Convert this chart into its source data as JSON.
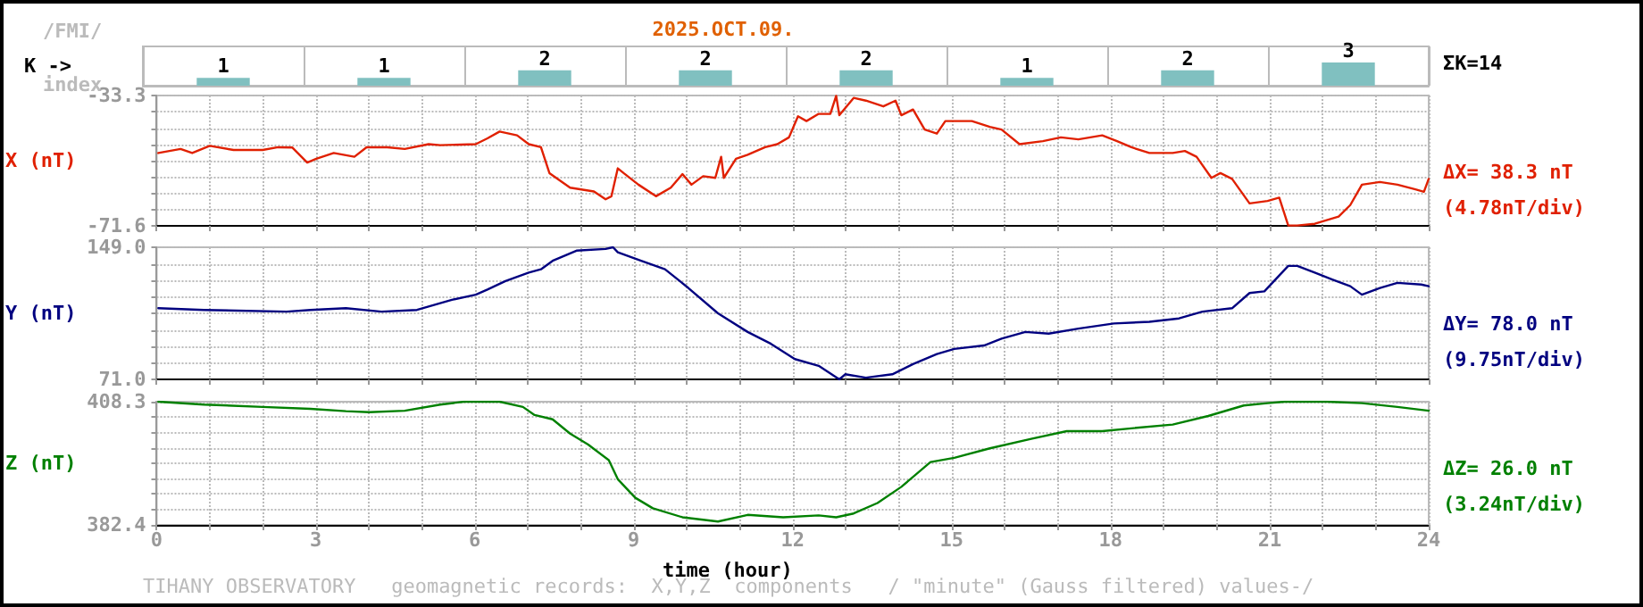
{
  "chart_data": [
    {
      "type": "bar",
      "title": "2025.OCT.09.",
      "ylabel": "K ->",
      "annotations": [
        "/FMI/",
        "index",
        "ΣK=14"
      ],
      "categories": [
        null,
        null,
        null,
        null,
        null,
        null,
        null,
        null
      ],
      "values": [
        1,
        1,
        2,
        2,
        2,
        1,
        2,
        3
      ],
      "color": "#80c0c0",
      "data_labels": true,
      "grid": "x"
    },
    {
      "type": "line",
      "ylabel": "X (nT)",
      "annotations": [
        "ΔX= 38.3 nT",
        "(4.78nT/div)"
      ],
      "series": [
        {
          "color": "#e02000",
          "x": [
            0.03,
            0.45,
            0.67,
            1.0,
            1.45,
            2.0,
            2.29,
            2.56,
            2.84,
            3.01,
            3.34,
            3.73,
            3.96,
            4.35,
            4.68,
            5.13,
            5.35,
            6.02,
            6.24,
            6.47,
            6.8,
            7.02,
            7.25,
            7.41,
            7.8,
            8.25,
            8.47,
            8.58,
            8.7,
            8.81,
            9.09,
            9.42,
            9.7,
            9.92,
            10.09,
            10.31,
            10.54,
            10.65,
            10.7,
            10.93,
            11.15,
            11.48,
            11.71,
            11.93,
            12.1,
            12.26,
            12.49,
            12.71,
            12.82,
            12.88,
            13.15,
            13.38,
            13.71,
            13.94,
            14.05,
            14.27,
            14.49,
            14.72,
            14.88,
            15.05,
            15.38,
            15.72,
            15.94,
            16.28,
            16.72,
            17.06,
            17.39,
            17.84,
            18.12,
            18.39,
            18.73,
            19.17,
            19.4,
            19.62,
            19.9,
            20.07,
            20.29,
            20.62,
            20.96,
            21.18,
            21.35,
            21.52,
            21.85,
            22.3,
            22.52,
            22.74,
            23.08,
            23.41,
            23.75,
            23.91,
            24.0
          ],
          "values": [
            -50.2,
            -49.0,
            -50.2,
            -48.1,
            -49.3,
            -49.3,
            -48.5,
            -48.6,
            -53.0,
            -51.9,
            -50.2,
            -51.3,
            -48.5,
            -48.5,
            -49.0,
            -47.6,
            -47.9,
            -47.6,
            -45.9,
            -43.9,
            -45.0,
            -47.6,
            -48.5,
            -56.1,
            -60.4,
            -61.5,
            -63.8,
            -62.9,
            -54.7,
            -56.1,
            -59.5,
            -62.9,
            -60.4,
            -56.4,
            -59.5,
            -57.0,
            -57.5,
            -51.3,
            -57.5,
            -51.9,
            -50.7,
            -48.5,
            -47.6,
            -45.6,
            -39.4,
            -40.8,
            -38.7,
            -38.7,
            -33.4,
            -39.1,
            -34.0,
            -34.8,
            -36.5,
            -34.8,
            -39.1,
            -37.4,
            -43.3,
            -44.5,
            -40.8,
            -40.8,
            -40.8,
            -42.5,
            -43.3,
            -47.6,
            -46.7,
            -45.6,
            -46.2,
            -45.0,
            -46.7,
            -48.5,
            -50.2,
            -50.2,
            -49.6,
            -51.3,
            -57.5,
            -56.1,
            -57.8,
            -65.0,
            -64.3,
            -63.3,
            -71.5,
            -71.5,
            -71.0,
            -68.9,
            -65.5,
            -59.5,
            -58.7,
            -59.5,
            -60.9,
            -61.6,
            -57.8
          ]
        }
      ],
      "xlim": [
        0,
        24
      ],
      "xticks": [
        0,
        {
          "value": 1,
          "label": null
        },
        {
          "value": 2,
          "label": null
        },
        3,
        {
          "value": 4,
          "label": null
        },
        {
          "value": 5,
          "label": null
        },
        6,
        {
          "value": 7,
          "label": null
        },
        {
          "value": 8,
          "label": null
        },
        9,
        {
          "value": 10,
          "label": null
        },
        {
          "value": 11,
          "label": null
        },
        12,
        {
          "value": 13,
          "label": null
        },
        {
          "value": 14,
          "label": null
        },
        15,
        {
          "value": 16,
          "label": null
        },
        {
          "value": 17,
          "label": null
        },
        18,
        {
          "value": 19,
          "label": null
        },
        {
          "value": 20,
          "label": null
        },
        21,
        {
          "value": 22,
          "label": null
        },
        {
          "value": 23,
          "label": null
        },
        24
      ],
      "ylim": [
        -71.6,
        -33.3
      ],
      "yticks": [
        -71.6,
        {
          "value": -66.81,
          "label": null
        },
        {
          "value": -62.03,
          "label": null
        },
        {
          "value": -57.24,
          "label": null
        },
        {
          "value": -52.45,
          "label": null
        },
        {
          "value": -47.66,
          "label": null
        },
        {
          "value": -42.88,
          "label": null
        },
        {
          "value": -38.09,
          "label": null
        },
        -33.3
      ],
      "tick_labels": "y",
      "grid": true,
      "marker": "none",
      "line_style": "solid"
    },
    {
      "type": "line",
      "ylabel": "Y (nT)",
      "annotations": [
        "ΔY= 78.0 nT",
        "(9.75nT/div)"
      ],
      "series": [
        {
          "color": "#000080",
          "x": [
            0.03,
            0.89,
            2.45,
            2.9,
            3.57,
            4.24,
            4.91,
            5.57,
            6.02,
            6.24,
            6.58,
            7.02,
            7.25,
            7.47,
            7.92,
            8.47,
            8.61,
            8.7,
            9.14,
            9.59,
            10.03,
            10.59,
            11.15,
            11.59,
            12.04,
            12.49,
            12.88,
            12.99,
            13.38,
            13.88,
            14.27,
            14.72,
            15.05,
            15.61,
            15.94,
            16.39,
            16.83,
            17.39,
            18.06,
            18.73,
            19.29,
            19.73,
            20.29,
            20.62,
            20.9,
            21.35,
            21.52,
            21.85,
            22.18,
            22.52,
            22.74,
            23.08,
            23.41,
            23.86,
            24.0
          ],
          "values": [
            113,
            112,
            111,
            112,
            113,
            111,
            112,
            118,
            121,
            124,
            129,
            134,
            136,
            141,
            147,
            148,
            149,
            146,
            141,
            136,
            125,
            110,
            99,
            92,
            83,
            79,
            71,
            74,
            72,
            74,
            80,
            86,
            89,
            91,
            95,
            99,
            98,
            101,
            104,
            105,
            107,
            111,
            113,
            122,
            123,
            138,
            138,
            134,
            130,
            126,
            121,
            125,
            128,
            127,
            126
          ]
        }
      ],
      "xlim": [
        0,
        24
      ],
      "xticks": [
        0,
        {
          "value": 1,
          "label": null
        },
        {
          "value": 2,
          "label": null
        },
        3,
        {
          "value": 4,
          "label": null
        },
        {
          "value": 5,
          "label": null
        },
        6,
        {
          "value": 7,
          "label": null
        },
        {
          "value": 8,
          "label": null
        },
        9,
        {
          "value": 10,
          "label": null
        },
        {
          "value": 11,
          "label": null
        },
        12,
        {
          "value": 13,
          "label": null
        },
        {
          "value": 14,
          "label": null
        },
        15,
        {
          "value": 16,
          "label": null
        },
        {
          "value": 17,
          "label": null
        },
        18,
        {
          "value": 19,
          "label": null
        },
        {
          "value": 20,
          "label": null
        },
        21,
        {
          "value": 22,
          "label": null
        },
        {
          "value": 23,
          "label": null
        },
        24
      ],
      "ylim": [
        71.0,
        149.0
      ],
      "yticks": [
        {
          "value": 71,
          "label": "71.0"
        },
        {
          "value": 80.75,
          "label": null
        },
        {
          "value": 90.5,
          "label": null
        },
        {
          "value": 100.25,
          "label": null
        },
        {
          "value": 110,
          "label": null
        },
        {
          "value": 119.75,
          "label": null
        },
        {
          "value": 129.5,
          "label": null
        },
        {
          "value": 139.25,
          "label": null
        },
        {
          "value": 149,
          "label": "149.0"
        }
      ],
      "tick_labels": "y",
      "grid": true,
      "marker": "none",
      "line_style": "solid"
    },
    {
      "type": "line",
      "ylabel": "Z (nT)",
      "xlabel": "time (hour)",
      "annotations": [
        "ΔZ= 26.0 nT",
        "(3.24nT/div)",
        "TIHANY OBSERVATORY   geomagnetic records:  X,Y,Z  components   / \"minute\" (Gauss filtered) values-/"
      ],
      "series": [
        {
          "color": "#008000",
          "x": [
            0.03,
            0.89,
            2.0,
            2.9,
            3.57,
            4.01,
            4.68,
            5.35,
            5.8,
            6.47,
            6.91,
            7.13,
            7.47,
            7.8,
            8.14,
            8.53,
            8.7,
            9.03,
            9.36,
            9.92,
            10.59,
            11.15,
            11.82,
            12.49,
            12.82,
            13.15,
            13.6,
            14.05,
            14.6,
            15.05,
            15.72,
            16.5,
            17.17,
            17.84,
            18.39,
            19.17,
            19.84,
            20.51,
            20.96,
            21.29,
            22.07,
            22.74,
            23.41,
            24.0
          ],
          "values": [
            408.3,
            407.7,
            407.2,
            406.8,
            406.3,
            406.1,
            406.4,
            407.7,
            408.3,
            408.3,
            407.2,
            405.5,
            404.6,
            401.6,
            399.3,
            396.0,
            392.0,
            388.1,
            385.9,
            384.0,
            383.1,
            384.5,
            384.0,
            384.4,
            384.0,
            384.8,
            387.0,
            390.4,
            395.6,
            396.5,
            398.5,
            400.5,
            402.1,
            402.1,
            402.7,
            403.5,
            405.3,
            407.5,
            408.0,
            408.3,
            408.3,
            408.0,
            407.2,
            406.4
          ]
        }
      ],
      "xlim": [
        0,
        24
      ],
      "xticks": [
        0,
        {
          "value": 1,
          "label": null
        },
        {
          "value": 2,
          "label": null
        },
        3,
        {
          "value": 4,
          "label": null
        },
        {
          "value": 5,
          "label": null
        },
        6,
        {
          "value": 7,
          "label": null
        },
        {
          "value": 8,
          "label": null
        },
        9,
        {
          "value": 10,
          "label": null
        },
        {
          "value": 11,
          "label": null
        },
        12,
        {
          "value": 13,
          "label": null
        },
        {
          "value": 14,
          "label": null
        },
        15,
        {
          "value": 16,
          "label": null
        },
        {
          "value": 17,
          "label": null
        },
        18,
        {
          "value": 19,
          "label": null
        },
        {
          "value": 20,
          "label": null
        },
        21,
        {
          "value": 22,
          "label": null
        },
        {
          "value": 23,
          "label": null
        },
        24
      ],
      "ylim": [
        382.4,
        408.3
      ],
      "yticks": [
        382.4,
        {
          "value": 385.64,
          "label": null
        },
        {
          "value": 388.88,
          "label": null
        },
        {
          "value": 392.11,
          "label": null
        },
        {
          "value": 395.35,
          "label": null
        },
        {
          "value": 398.59,
          "label": null
        },
        {
          "value": 401.83,
          "label": null
        },
        {
          "value": 405.06,
          "label": null
        },
        408.3
      ],
      "grid": true,
      "marker": "none",
      "line_style": "solid"
    }
  ]
}
